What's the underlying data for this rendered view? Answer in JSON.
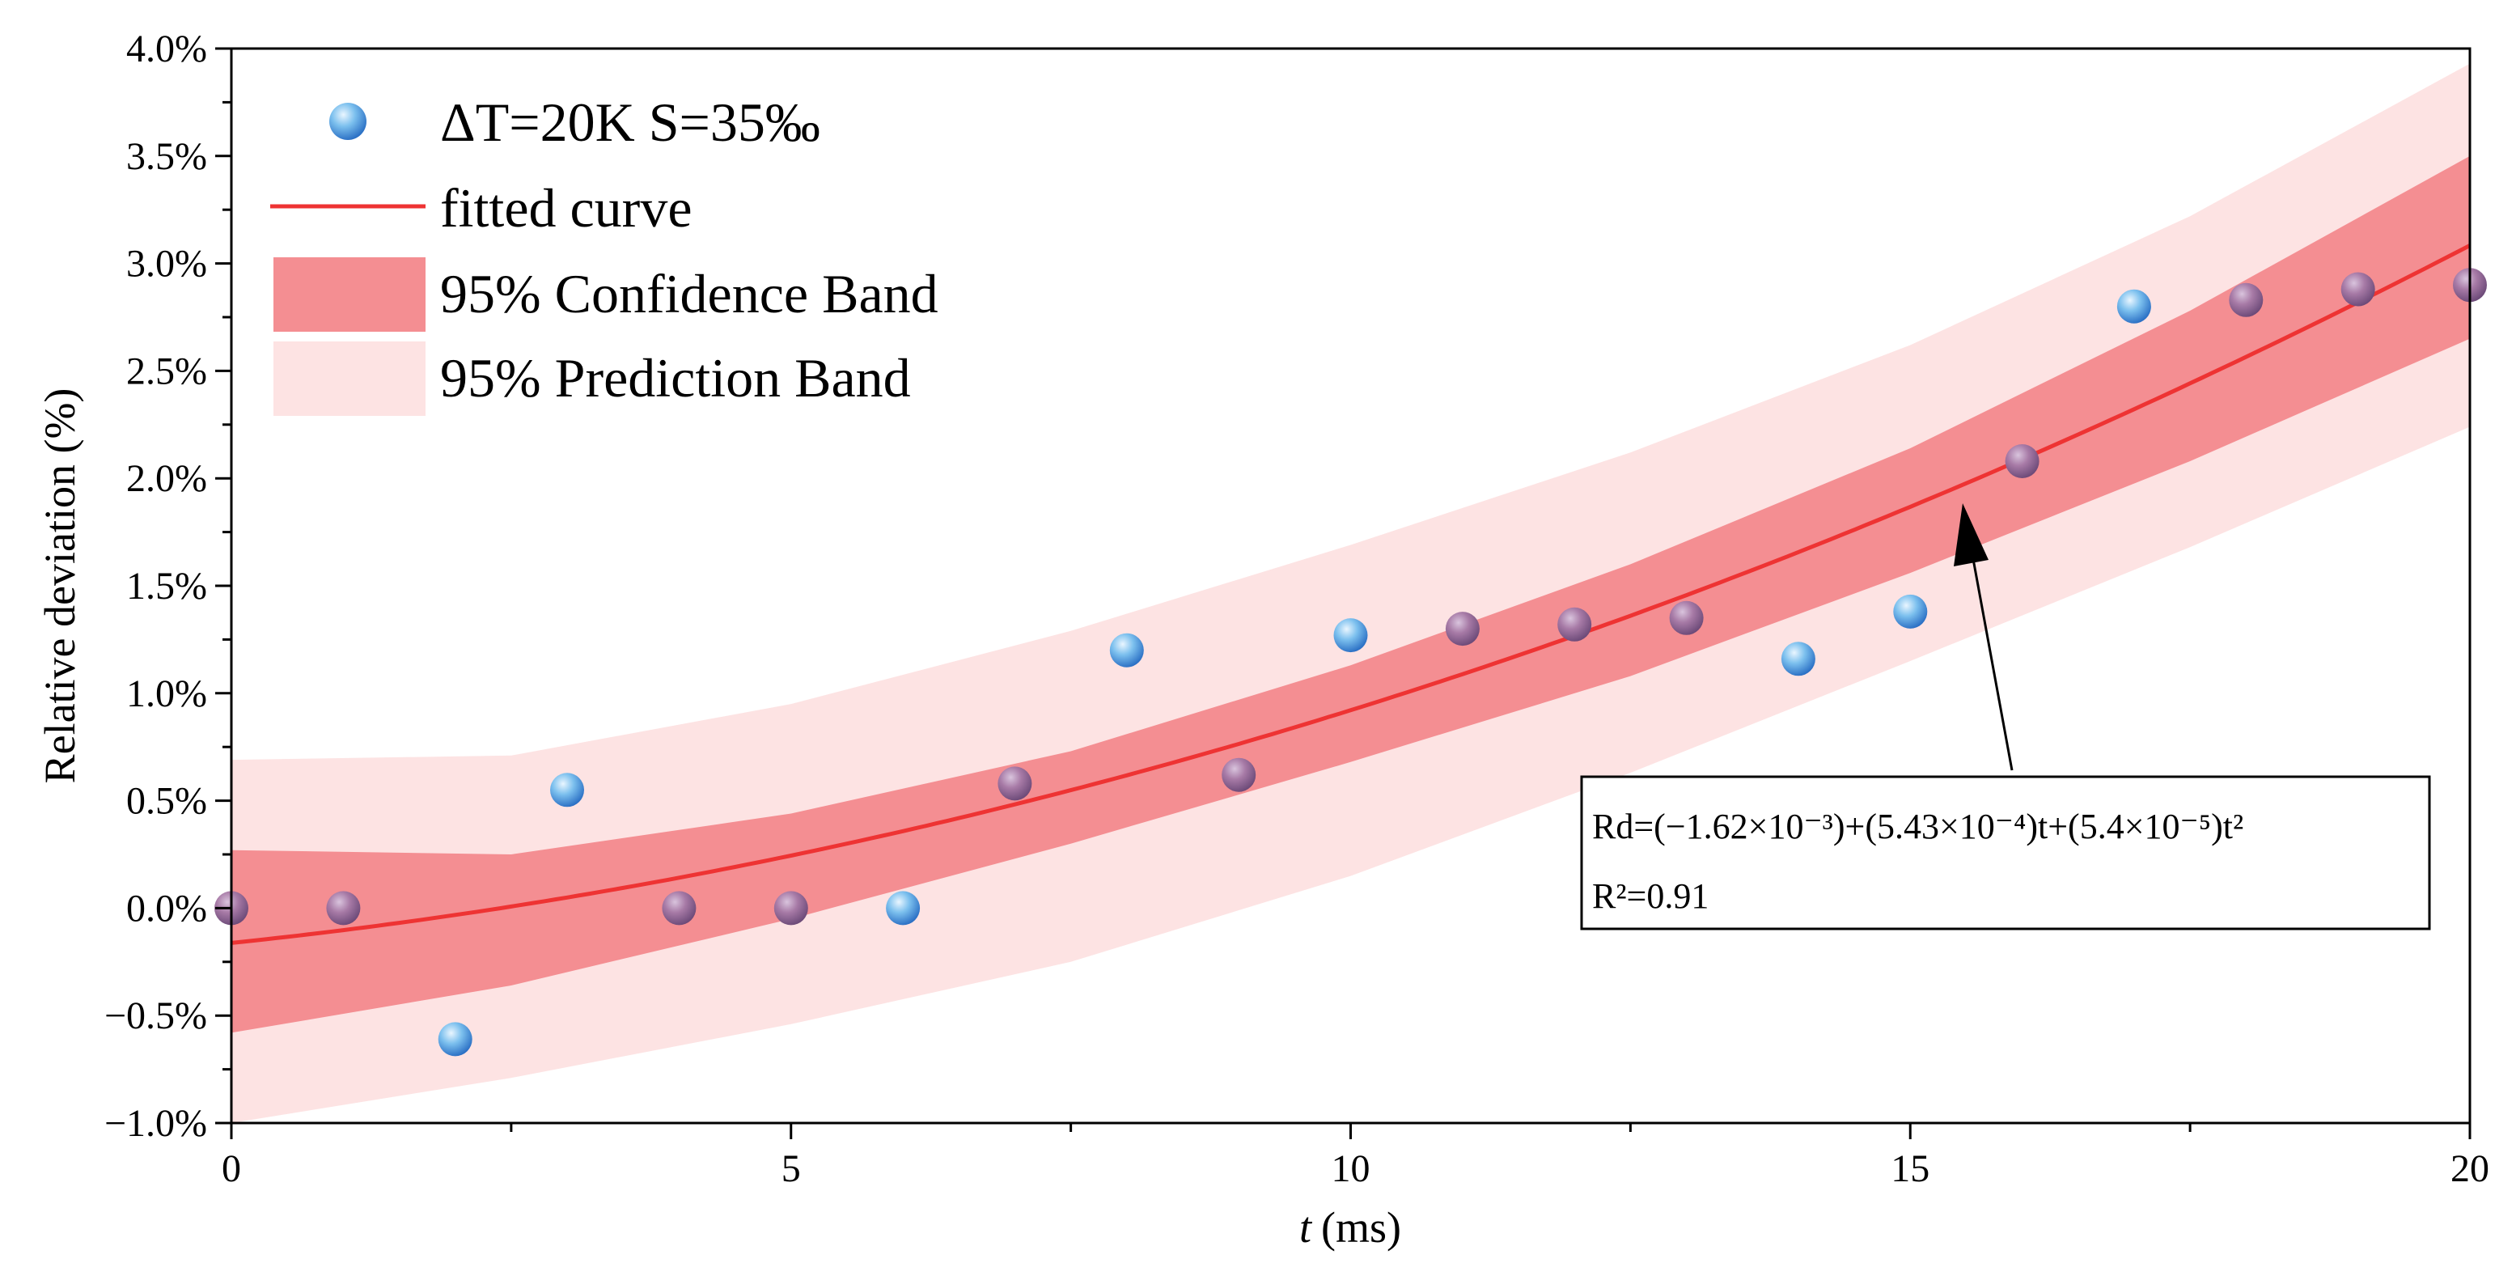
{
  "chart_data": {
    "type": "scatter",
    "x_label": "(ms)",
    "x_label_italic": "t",
    "y_label": "Relative deviation (%)",
    "xlim": [
      0,
      20
    ],
    "ylim": [
      -1.0,
      4.0
    ],
    "x_ticks": [
      "0",
      "5",
      "10",
      "15",
      "20"
    ],
    "y_ticks": [
      "−1.0%",
      "−0.5%",
      "0.0%",
      "0.5%",
      "1.0%",
      "1.5%",
      "2.0%",
      "2.5%",
      "3.0%",
      "3.5%",
      "4.0%"
    ],
    "series": [
      {
        "name": "ΔT=20K S=35‰",
        "kind": "points",
        "x": [
          0,
          1,
          2,
          3,
          4,
          5,
          6,
          7,
          8,
          9,
          10,
          11,
          12,
          13,
          14,
          15,
          16,
          17,
          18,
          19,
          20
        ],
        "y": [
          0.0,
          0.0,
          -0.61,
          0.55,
          0.0,
          0.0,
          0.0,
          0.58,
          1.2,
          0.62,
          1.27,
          1.3,
          1.32,
          1.35,
          1.16,
          1.38,
          2.08,
          2.8,
          2.83,
          2.88,
          2.9
        ]
      },
      {
        "name": "fitted curve",
        "kind": "line",
        "coefficients": [
          -0.162,
          0.0543,
          0.0054
        ]
      },
      {
        "name": "95% Confidence Band",
        "kind": "band",
        "x": [
          0,
          2.5,
          5,
          7.5,
          10,
          12.5,
          15,
          17.5,
          20
        ],
        "lower": [
          -0.58,
          -0.36,
          -0.05,
          0.3,
          0.68,
          1.08,
          1.56,
          2.08,
          2.65
        ],
        "upper": [
          0.27,
          0.25,
          0.44,
          0.73,
          1.13,
          1.6,
          2.14,
          2.78,
          3.5
        ]
      },
      {
        "name": "95% Prediction Band",
        "kind": "band",
        "x": [
          0,
          2.5,
          5,
          7.5,
          10,
          12.5,
          15,
          17.5,
          20
        ],
        "lower": [
          -1.0,
          -0.79,
          -0.54,
          -0.25,
          0.15,
          0.63,
          1.15,
          1.68,
          2.24
        ],
        "upper": [
          0.69,
          0.71,
          0.95,
          1.29,
          1.69,
          2.12,
          2.62,
          3.22,
          3.93
        ]
      }
    ],
    "legend": {
      "position": "top-left",
      "entries": [
        {
          "label": "ΔT=20K S=35‰",
          "symbol": "sphere"
        },
        {
          "label": "fitted curve",
          "symbol": "line"
        },
        {
          "label": "95% Confidence Band",
          "symbol": "band-dark"
        },
        {
          "label": "95% Prediction Band",
          "symbol": "band-light"
        }
      ]
    },
    "annotation": {
      "equation": "Rd=(−1.62×10⁻³)+(5.43×10⁻⁴)t+(5.4×10⁻⁵)t²",
      "r_squared": "R²=0.91",
      "arrow_target": {
        "x": 15.5,
        "y": 1.83
      }
    },
    "colors": {
      "curve": "#ee3333",
      "confidence_band": "#f48e92",
      "prediction_band": "#fde3e3",
      "point_light": "#d2ecfb",
      "point_dark": "#2f7fd3",
      "point_overlap": "#9a6a96"
    }
  }
}
